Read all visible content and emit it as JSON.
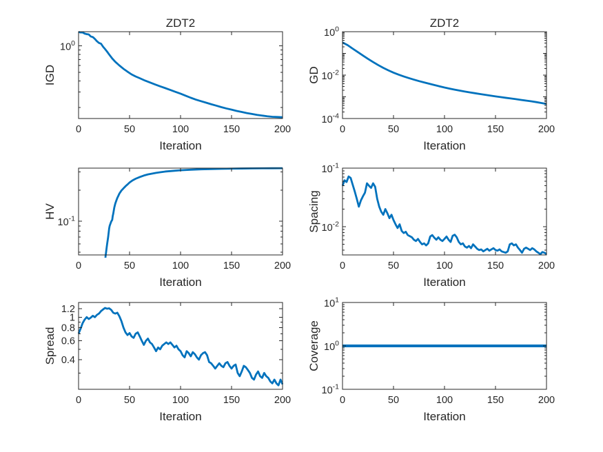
{
  "figure": {
    "background": "#ffffff",
    "axis_color": "#262626",
    "text_color": "#262626",
    "line_color": "#0072bd",
    "xlabel": "Iteration",
    "xlim": [
      0,
      200
    ],
    "x_ticks": [
      0,
      50,
      100,
      150,
      200
    ]
  },
  "chart_data": [
    {
      "id": "igd",
      "type": "line",
      "row": 0,
      "col": 0,
      "title": "ZDT2",
      "ylabel": "IGD",
      "xlabel": "Iteration",
      "yscale": "log",
      "ylim": [
        0.15,
        1.45
      ],
      "xlim": [
        0,
        200
      ],
      "grid": false,
      "legend": null,
      "y_ticks": [
        {
          "v": 1,
          "label": "10^0"
        }
      ],
      "line_width": 2.8,
      "x": [
        0,
        2,
        4,
        6,
        8,
        10,
        12,
        14,
        16,
        18,
        20,
        22,
        24,
        26,
        28,
        30,
        33,
        36,
        40,
        44,
        48,
        52,
        56,
        60,
        65,
        70,
        75,
        80,
        85,
        90,
        95,
        100,
        105,
        110,
        115,
        120,
        125,
        130,
        135,
        140,
        145,
        150,
        155,
        160,
        165,
        170,
        175,
        180,
        185,
        190,
        195,
        200
      ],
      "y": [
        1.44,
        1.42,
        1.42,
        1.38,
        1.36,
        1.35,
        1.28,
        1.26,
        1.2,
        1.13,
        1.08,
        1.06,
        0.98,
        0.92,
        0.86,
        0.8,
        0.72,
        0.66,
        0.6,
        0.55,
        0.51,
        0.475,
        0.45,
        0.43,
        0.405,
        0.385,
        0.365,
        0.348,
        0.332,
        0.316,
        0.301,
        0.287,
        0.272,
        0.258,
        0.246,
        0.236,
        0.227,
        0.218,
        0.21,
        0.202,
        0.195,
        0.189,
        0.183,
        0.178,
        0.173,
        0.169,
        0.165,
        0.162,
        0.159,
        0.157,
        0.156,
        0.155
      ]
    },
    {
      "id": "gd",
      "type": "line",
      "row": 0,
      "col": 1,
      "title": "ZDT2",
      "ylabel": "GD",
      "xlabel": "Iteration",
      "yscale": "log",
      "ylim": [
        0.0001,
        1
      ],
      "xlim": [
        0,
        200
      ],
      "grid": false,
      "legend": null,
      "y_ticks": [
        {
          "v": 1,
          "label": "10^0"
        },
        {
          "v": 0.01,
          "label": "10^-2"
        },
        {
          "v": 0.0001,
          "label": "10^-4"
        }
      ],
      "line_width": 2.8,
      "x": [
        0,
        5,
        10,
        15,
        20,
        25,
        30,
        35,
        40,
        45,
        50,
        55,
        60,
        65,
        70,
        75,
        80,
        85,
        90,
        95,
        100,
        105,
        110,
        115,
        120,
        125,
        130,
        135,
        140,
        145,
        150,
        155,
        160,
        165,
        170,
        175,
        180,
        185,
        190,
        195,
        200
      ],
      "y": [
        0.32,
        0.24,
        0.165,
        0.115,
        0.08,
        0.056,
        0.04,
        0.029,
        0.0215,
        0.0165,
        0.013,
        0.0105,
        0.0087,
        0.0073,
        0.0062,
        0.0053,
        0.0046,
        0.004,
        0.0035,
        0.00305,
        0.00268,
        0.00239,
        0.00214,
        0.00193,
        0.00175,
        0.00159,
        0.00146,
        0.00134,
        0.00123,
        0.00114,
        0.00105,
        0.00097,
        0.0009,
        0.00084,
        0.00078,
        0.00072,
        0.00067,
        0.00062,
        0.00057,
        0.00052,
        0.00047
      ]
    },
    {
      "id": "hv",
      "type": "line",
      "row": 1,
      "col": 0,
      "title": "",
      "ylabel": "HV",
      "xlabel": "Iteration",
      "yscale": "log",
      "ylim": [
        0.047,
        0.327
      ],
      "xlim": [
        0,
        200
      ],
      "grid": false,
      "legend": null,
      "y_ticks": [
        {
          "v": 0.1,
          "label": "10^-1"
        }
      ],
      "line_width": 2.8,
      "x": [
        25,
        26,
        26.5,
        27,
        27.5,
        28,
        29,
        30,
        30.5,
        31,
        32,
        33,
        33.5,
        34,
        35,
        36,
        37,
        38,
        39,
        40,
        42,
        44,
        46,
        48,
        50,
        53,
        56,
        60,
        64,
        68,
        72,
        76,
        80,
        85,
        90,
        95,
        100,
        110,
        120,
        130,
        140,
        150,
        160,
        170,
        180,
        190,
        200
      ],
      "y": [
        0.03,
        0.04,
        0.046,
        0.05,
        0.055,
        0.06,
        0.07,
        0.085,
        0.09,
        0.093,
        0.099,
        0.103,
        0.112,
        0.118,
        0.135,
        0.148,
        0.158,
        0.168,
        0.176,
        0.185,
        0.198,
        0.208,
        0.218,
        0.227,
        0.237,
        0.249,
        0.258,
        0.268,
        0.277,
        0.284,
        0.289,
        0.294,
        0.298,
        0.303,
        0.306,
        0.309,
        0.3115,
        0.3155,
        0.3185,
        0.3205,
        0.322,
        0.3232,
        0.3242,
        0.325,
        0.3256,
        0.3261,
        0.3265
      ]
    },
    {
      "id": "spacing",
      "type": "line",
      "row": 1,
      "col": 1,
      "title": "",
      "ylabel": "Spacing",
      "xlabel": "Iteration",
      "yscale": "log",
      "ylim": [
        0.0033,
        0.1
      ],
      "xlim": [
        0,
        200
      ],
      "grid": false,
      "legend": null,
      "y_ticks": [
        {
          "v": 0.1,
          "label": "10^-1"
        },
        {
          "v": 0.01,
          "label": "10^-2"
        }
      ],
      "line_width": 2.8,
      "x_start": 0,
      "x_step": 2,
      "y": [
        0.05,
        0.062,
        0.058,
        0.072,
        0.068,
        0.052,
        0.04,
        0.03,
        0.022,
        0.028,
        0.033,
        0.038,
        0.055,
        0.05,
        0.046,
        0.055,
        0.048,
        0.03,
        0.022,
        0.018,
        0.016,
        0.02,
        0.017,
        0.014,
        0.016,
        0.013,
        0.011,
        0.0095,
        0.011,
        0.0085,
        0.0078,
        0.0082,
        0.0072,
        0.0069,
        0.0066,
        0.006,
        0.0057,
        0.0062,
        0.0055,
        0.005,
        0.0052,
        0.0048,
        0.0052,
        0.0068,
        0.0072,
        0.0065,
        0.006,
        0.0066,
        0.006,
        0.0057,
        0.0062,
        0.0068,
        0.006,
        0.0055,
        0.007,
        0.0073,
        0.0066,
        0.0055,
        0.005,
        0.0052,
        0.0046,
        0.0044,
        0.0047,
        0.0043,
        0.005,
        0.0046,
        0.0042,
        0.004,
        0.0041,
        0.0038,
        0.004,
        0.0042,
        0.0039,
        0.0041,
        0.0043,
        0.004,
        0.0039,
        0.0041,
        0.0038,
        0.0037,
        0.0036,
        0.0038,
        0.005,
        0.0052,
        0.0048,
        0.005,
        0.0044,
        0.004,
        0.0036,
        0.0042,
        0.0044,
        0.0042,
        0.004,
        0.0043,
        0.0041,
        0.0038,
        0.0036,
        0.0034,
        0.0037,
        0.0036,
        0.0034
      ]
    },
    {
      "id": "spread",
      "type": "line",
      "row": 2,
      "col": 0,
      "title": "",
      "ylabel": "Spread",
      "xlabel": "Iteration",
      "yscale": "log",
      "ylim": [
        0.211,
        1.372
      ],
      "xlim": [
        0,
        200
      ],
      "grid": false,
      "legend": null,
      "y_ticks": [
        {
          "v": 1.2,
          "label": "1.2"
        },
        {
          "v": 1,
          "label": "1"
        },
        {
          "v": 0.8,
          "label": "0.8"
        },
        {
          "v": 0.6,
          "label": "0.6"
        },
        {
          "v": 0.4,
          "label": "0.4"
        }
      ],
      "line_width": 2.8,
      "x_start": 0,
      "x_step": 2,
      "y": [
        0.7,
        0.78,
        0.88,
        0.95,
        1.0,
        0.96,
        0.99,
        1.03,
        1.0,
        1.05,
        1.08,
        1.14,
        1.18,
        1.22,
        1.2,
        1.21,
        1.17,
        1.1,
        1.08,
        1.1,
        1.02,
        0.92,
        0.8,
        0.72,
        0.68,
        0.71,
        0.66,
        0.64,
        0.7,
        0.72,
        0.66,
        0.6,
        0.55,
        0.6,
        0.63,
        0.58,
        0.56,
        0.52,
        0.48,
        0.52,
        0.5,
        0.54,
        0.56,
        0.58,
        0.56,
        0.58,
        0.55,
        0.52,
        0.54,
        0.5,
        0.48,
        0.44,
        0.42,
        0.48,
        0.46,
        0.43,
        0.47,
        0.45,
        0.42,
        0.4,
        0.44,
        0.46,
        0.47,
        0.44,
        0.38,
        0.37,
        0.35,
        0.33,
        0.35,
        0.37,
        0.35,
        0.34,
        0.37,
        0.38,
        0.35,
        0.33,
        0.35,
        0.36,
        0.3,
        0.28,
        0.31,
        0.35,
        0.34,
        0.32,
        0.3,
        0.27,
        0.26,
        0.29,
        0.31,
        0.28,
        0.27,
        0.3,
        0.28,
        0.27,
        0.25,
        0.24,
        0.26,
        0.24,
        0.23,
        0.26,
        0.235
      ]
    },
    {
      "id": "coverage",
      "type": "line",
      "row": 2,
      "col": 1,
      "title": "",
      "ylabel": "Coverage",
      "xlabel": "Iteration",
      "yscale": "log",
      "ylim": [
        0.1,
        10
      ],
      "xlim": [
        0,
        200
      ],
      "grid": false,
      "legend": null,
      "y_ticks": [
        {
          "v": 10,
          "label": "10^1"
        },
        {
          "v": 1,
          "label": "10^0"
        },
        {
          "v": 0.1,
          "label": "10^-1"
        }
      ],
      "line_width": 4,
      "x": [
        0,
        200
      ],
      "y": [
        1,
        1
      ]
    }
  ]
}
